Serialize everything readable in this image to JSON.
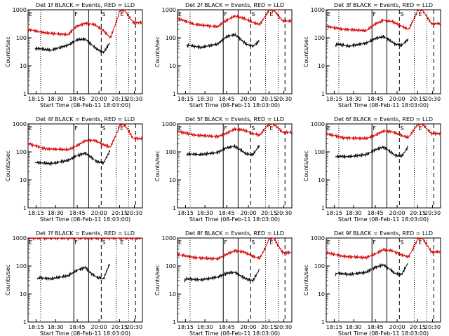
{
  "figure": {
    "colors": {
      "events": "#000000",
      "lld": "#d40000",
      "frame": "#000000",
      "background": "#ffffff"
    },
    "ytick_labels": [
      "1000",
      "100",
      "10",
      "1"
    ],
    "xtick_labels": [
      "18:15",
      "18:30",
      "18:45",
      "20:00",
      "20:15",
      "20:30"
    ],
    "ylabel": "Counts/sec",
    "xlabel": "Start Time (08-Feb-11 18:03:00)",
    "markers": [
      "E",
      "F",
      "S",
      "E"
    ]
  },
  "chart_data": [
    {
      "type": "line",
      "title": "Det 1f BLACK = Events, RED = LLD",
      "xlabel": "Start Time (08-Feb-11 18:03:00)",
      "ylabel": "Counts/sec",
      "yscale": "log",
      "ylim": [
        1,
        1000
      ],
      "grid": false,
      "x_ticks": [
        "18:15",
        "18:30",
        "18:45",
        "20:00",
        "20:15",
        "20:30"
      ],
      "series": [
        {
          "name": "Events",
          "color": "#000000",
          "x": [
            0.06,
            0.08,
            0.2,
            0.35,
            0.43,
            0.5,
            0.55,
            0.6,
            0.66,
            0.72
          ],
          "y": [
            40,
            42,
            36,
            55,
            85,
            90,
            60,
            40,
            30,
            70
          ]
        },
        {
          "name": "LLD",
          "color": "#d40000",
          "x": [
            0.0,
            0.15,
            0.35,
            0.42,
            0.5,
            0.58,
            0.66,
            0.72,
            0.78,
            0.8,
            0.84,
            0.92,
            1.0
          ],
          "y": [
            200,
            150,
            130,
            250,
            330,
            300,
            180,
            100,
            450,
            900,
            1000,
            350,
            350
          ]
        }
      ]
    },
    {
      "type": "line",
      "title": "Det 2f BLACK = Events, RED = LLD",
      "xlabel": "Start Time (08-Feb-11 18:03:00)",
      "ylabel": "Counts/sec",
      "yscale": "log",
      "ylim": [
        1,
        1000
      ],
      "grid": false,
      "x_ticks": [
        "18:15",
        "18:30",
        "18:45",
        "20:00",
        "20:15",
        "20:30"
      ],
      "series": [
        {
          "name": "Events",
          "color": "#000000",
          "x": [
            0.08,
            0.1,
            0.2,
            0.35,
            0.43,
            0.5,
            0.55,
            0.6,
            0.66,
            0.72
          ],
          "y": [
            50,
            55,
            45,
            60,
            110,
            130,
            90,
            60,
            50,
            80
          ]
        },
        {
          "name": "LLD",
          "color": "#d40000",
          "x": [
            0.0,
            0.15,
            0.35,
            0.42,
            0.5,
            0.58,
            0.66,
            0.72,
            0.78,
            0.8,
            0.84,
            0.92,
            1.0
          ],
          "y": [
            500,
            300,
            250,
            400,
            600,
            500,
            350,
            300,
            700,
            950,
            1000,
            400,
            400
          ]
        }
      ]
    },
    {
      "type": "line",
      "title": "Det 3f BLACK = Events, RED = LLD",
      "xlabel": "Start Time (08-Feb-11 18:03:00)",
      "ylabel": "Counts/sec",
      "yscale": "log",
      "ylim": [
        1,
        1000
      ],
      "grid": false,
      "x_ticks": [
        "18:15",
        "18:30",
        "18:45",
        "20:00",
        "20:15",
        "20:30"
      ],
      "series": [
        {
          "name": "Events",
          "color": "#000000",
          "x": [
            0.08,
            0.1,
            0.2,
            0.35,
            0.43,
            0.5,
            0.55,
            0.6,
            0.66,
            0.72
          ],
          "y": [
            55,
            60,
            50,
            65,
            95,
            110,
            85,
            60,
            55,
            90
          ]
        },
        {
          "name": "LLD",
          "color": "#d40000",
          "x": [
            0.0,
            0.15,
            0.35,
            0.42,
            0.5,
            0.58,
            0.66,
            0.72,
            0.78,
            0.8,
            0.84,
            0.92,
            1.0
          ],
          "y": [
            260,
            200,
            180,
            300,
            420,
            380,
            260,
            200,
            600,
            950,
            1000,
            320,
            320
          ]
        }
      ]
    },
    {
      "type": "line",
      "title": "Det 4f BLACK = Events, RED = LLD",
      "xlabel": "Start Time (08-Feb-11 18:03:00)",
      "ylabel": "Counts/sec",
      "yscale": "log",
      "ylim": [
        1,
        1000
      ],
      "grid": false,
      "x_ticks": [
        "18:15",
        "18:30",
        "18:45",
        "20:00",
        "20:15",
        "20:30"
      ],
      "series": [
        {
          "name": "Events",
          "color": "#000000",
          "x": [
            0.06,
            0.08,
            0.2,
            0.35,
            0.43,
            0.5,
            0.55,
            0.6,
            0.66,
            0.72
          ],
          "y": [
            40,
            42,
            38,
            50,
            75,
            90,
            65,
            45,
            40,
            120
          ]
        },
        {
          "name": "LLD",
          "color": "#d40000",
          "x": [
            0.0,
            0.15,
            0.35,
            0.42,
            0.5,
            0.58,
            0.66,
            0.72,
            0.78,
            0.8,
            0.84,
            0.92,
            1.0
          ],
          "y": [
            200,
            130,
            120,
            160,
            250,
            260,
            180,
            150,
            500,
            900,
            1000,
            300,
            300
          ]
        }
      ]
    },
    {
      "type": "line",
      "title": "Det 5f BLACK = Events, RED = LLD",
      "xlabel": "Start Time (08-Feb-11 18:03:00)",
      "ylabel": "Counts/sec",
      "yscale": "log",
      "ylim": [
        1,
        1000
      ],
      "grid": false,
      "x_ticks": [
        "18:15",
        "18:30",
        "18:45",
        "20:00",
        "20:15",
        "20:30"
      ],
      "series": [
        {
          "name": "Events",
          "color": "#000000",
          "x": [
            0.08,
            0.1,
            0.2,
            0.35,
            0.43,
            0.5,
            0.55,
            0.6,
            0.66,
            0.72
          ],
          "y": [
            80,
            85,
            80,
            95,
            140,
            160,
            120,
            85,
            80,
            180
          ]
        },
        {
          "name": "LLD",
          "color": "#d40000",
          "x": [
            0.0,
            0.15,
            0.35,
            0.42,
            0.5,
            0.58,
            0.66,
            0.72,
            0.78,
            0.8,
            0.84,
            0.92,
            1.0
          ],
          "y": [
            550,
            400,
            350,
            450,
            650,
            600,
            450,
            400,
            800,
            950,
            1000,
            500,
            500
          ]
        }
      ]
    },
    {
      "type": "line",
      "title": "Det 6f BLACK = Events, RED = LLD",
      "xlabel": "Start Time (08-Feb-11 18:03:00)",
      "ylabel": "Counts/sec",
      "yscale": "log",
      "ylim": [
        1,
        1000
      ],
      "grid": false,
      "x_ticks": [
        "18:15",
        "18:30",
        "18:45",
        "20:00",
        "20:15",
        "20:30"
      ],
      "series": [
        {
          "name": "Events",
          "color": "#000000",
          "x": [
            0.08,
            0.1,
            0.2,
            0.35,
            0.43,
            0.5,
            0.55,
            0.6,
            0.66,
            0.72
          ],
          "y": [
            65,
            70,
            68,
            80,
            120,
            150,
            110,
            75,
            70,
            160
          ]
        },
        {
          "name": "LLD",
          "color": "#d40000",
          "x": [
            0.0,
            0.15,
            0.35,
            0.42,
            0.5,
            0.58,
            0.66,
            0.72,
            0.78,
            0.8,
            0.84,
            0.92,
            1.0
          ],
          "y": [
            450,
            320,
            300,
            380,
            560,
            520,
            380,
            330,
            750,
            950,
            1000,
            450,
            450
          ]
        }
      ]
    },
    {
      "type": "line",
      "title": "Det 7f BLACK = Events, RED = LLD",
      "xlabel": "Start Time (08-Feb-11 18:03:00)",
      "ylabel": "Counts/sec",
      "yscale": "log",
      "ylim": [
        1,
        1000
      ],
      "grid": false,
      "x_ticks": [
        "18:15",
        "18:30",
        "18:45",
        "20:00",
        "20:15",
        "20:30"
      ],
      "series": [
        {
          "name": "Events",
          "color": "#000000",
          "x": [
            0.08,
            0.1,
            0.2,
            0.35,
            0.43,
            0.5,
            0.55,
            0.6,
            0.66,
            0.72
          ],
          "y": [
            35,
            38,
            35,
            45,
            70,
            90,
            55,
            40,
            35,
            140
          ]
        },
        {
          "name": "LLD",
          "color": "#d40000",
          "x": [
            0.0,
            0.15,
            0.35,
            0.42,
            0.5,
            0.58,
            0.66,
            0.72,
            0.78,
            0.8,
            0.84,
            0.92,
            1.0
          ],
          "y": [
            1000,
            1000,
            1000,
            1000,
            1000,
            1000,
            1000,
            1000,
            1000,
            1000,
            1000,
            1000,
            1000
          ]
        }
      ]
    },
    {
      "type": "line",
      "title": "Det 8f BLACK = Events, RED = LLD",
      "xlabel": "Start Time (08-Feb-11 18:03:00)",
      "ylabel": "Counts/sec",
      "yscale": "log",
      "ylim": [
        1,
        1000
      ],
      "grid": false,
      "x_ticks": [
        "18:15",
        "18:30",
        "18:45",
        "20:00",
        "20:15",
        "20:30"
      ],
      "series": [
        {
          "name": "Events",
          "color": "#000000",
          "x": [
            0.06,
            0.08,
            0.2,
            0.35,
            0.43,
            0.5,
            0.55,
            0.6,
            0.66,
            0.72
          ],
          "y": [
            30,
            35,
            32,
            40,
            55,
            60,
            45,
            35,
            30,
            80
          ]
        },
        {
          "name": "LLD",
          "color": "#d40000",
          "x": [
            0.0,
            0.15,
            0.35,
            0.42,
            0.5,
            0.58,
            0.66,
            0.72,
            0.78,
            0.8,
            0.84,
            0.92,
            1.0
          ],
          "y": [
            260,
            200,
            180,
            250,
            350,
            320,
            220,
            190,
            550,
            950,
            1000,
            300,
            300
          ]
        }
      ]
    },
    {
      "type": "line",
      "title": "Det 9f BLACK = Events, RED = LLD",
      "xlabel": "Start Time (08-Feb-11 18:03:00)",
      "ylabel": "Counts/sec",
      "yscale": "log",
      "ylim": [
        1,
        1000
      ],
      "grid": false,
      "x_ticks": [
        "18:15",
        "18:30",
        "18:45",
        "20:00",
        "20:15",
        "20:30"
      ],
      "series": [
        {
          "name": "Events",
          "color": "#000000",
          "x": [
            0.08,
            0.1,
            0.2,
            0.35,
            0.43,
            0.5,
            0.55,
            0.6,
            0.66,
            0.72
          ],
          "y": [
            50,
            55,
            50,
            60,
            90,
            110,
            80,
            55,
            50,
            140
          ]
        },
        {
          "name": "LLD",
          "color": "#d40000",
          "x": [
            0.0,
            0.15,
            0.35,
            0.42,
            0.5,
            0.58,
            0.66,
            0.72,
            0.78,
            0.8,
            0.84,
            0.92,
            1.0
          ],
          "y": [
            300,
            220,
            200,
            260,
            380,
            350,
            250,
            210,
            600,
            950,
            1000,
            320,
            320
          ]
        }
      ]
    }
  ]
}
